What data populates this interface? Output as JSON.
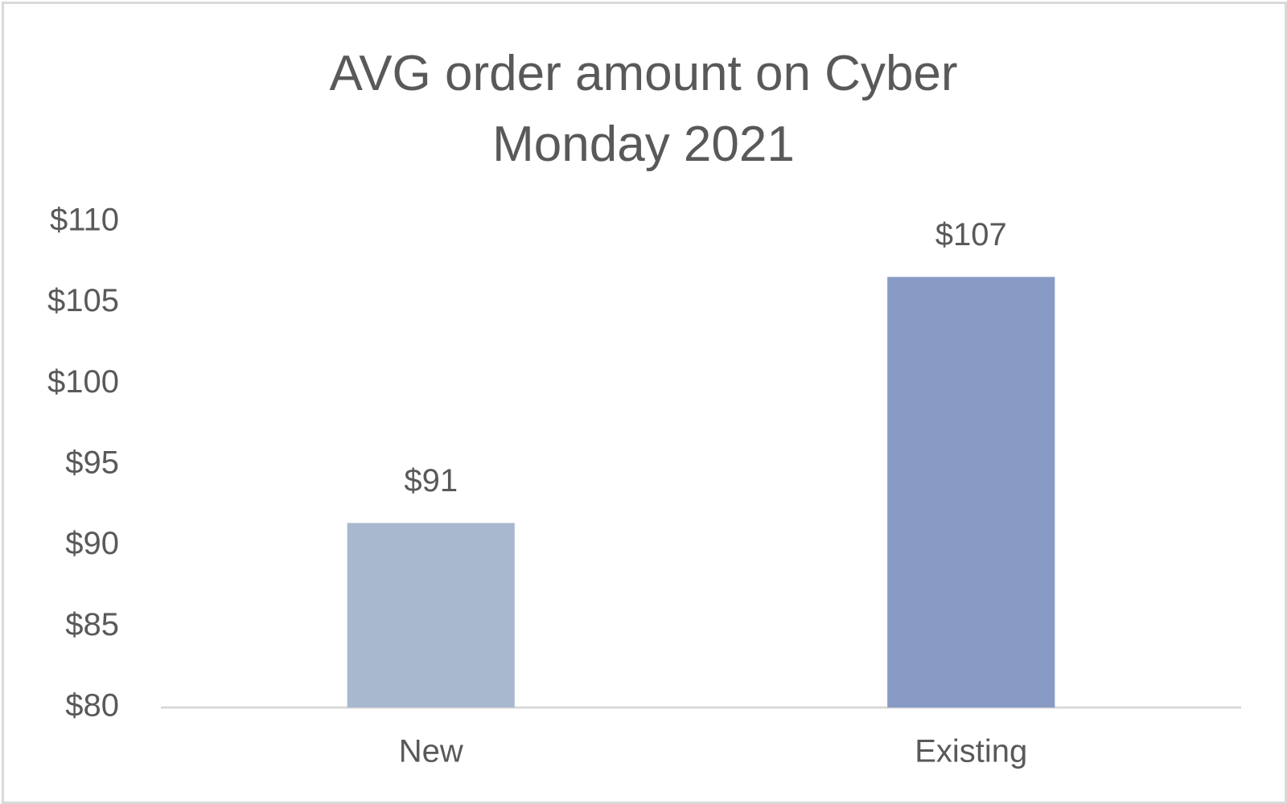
{
  "chart_data": {
    "type": "bar",
    "title": "AVG order amount on Cyber Monday 2021",
    "categories": [
      "New",
      "Existing"
    ],
    "values": [
      91.4,
      106.6
    ],
    "value_labels": [
      "$91",
      "$107"
    ],
    "colors": [
      "#a8b8cf",
      "#879bc4"
    ],
    "ylim": [
      80,
      110
    ],
    "yticks": [
      {
        "value": 80,
        "label": "$80"
      },
      {
        "value": 85,
        "label": "$85"
      },
      {
        "value": 90,
        "label": "$90"
      },
      {
        "value": 95,
        "label": "$95"
      },
      {
        "value": 100,
        "label": "$100"
      },
      {
        "value": 105,
        "label": "$105"
      },
      {
        "value": 110,
        "label": "$110"
      }
    ],
    "grid": false
  }
}
